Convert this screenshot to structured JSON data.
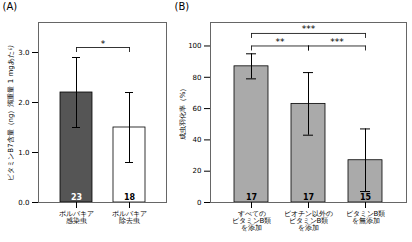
{
  "chart_data": [
    {
      "type": "bar",
      "title": "(A)",
      "categories": [
        "ボルバキア\n感染虫",
        "ボルバキア\n除去虫"
      ],
      "values": [
        2.2,
        1.5
      ],
      "errors": [
        0.7,
        0.7
      ],
      "ns": [
        23,
        18
      ],
      "colors": [
        "#555555",
        "#ffffff"
      ],
      "ylabel": "ビタミンB7含量（ng）濁重量 1 mgあたり",
      "ylim": [
        0,
        3.6
      ],
      "yticks": [
        {
          "value": 0,
          "label": "0.0"
        },
        {
          "value": 1,
          "label": "1.0"
        },
        {
          "value": 2,
          "label": "2.0"
        },
        {
          "value": 3,
          "label": "3.0"
        }
      ],
      "annotations": [
        {
          "from": "ボルバキア\n感染虫",
          "to": "ボルバキア\n除去虫",
          "y": 3.1,
          "text": "*"
        }
      ]
    },
    {
      "type": "bar",
      "title": "(B)",
      "categories": [
        "すべての\nビタミンB類\nを添加",
        "ビオチン以外の\nビタミンB類\nを添加",
        "ビタミンB類\nを無添加"
      ],
      "values": [
        87,
        63,
        27
      ],
      "errors": [
        8,
        20,
        20
      ],
      "ns": [
        17,
        17,
        15
      ],
      "colors": [
        "#aaaaaa",
        "#aaaaaa",
        "#aaaaaa"
      ],
      "ylabel": "成虫羽化率（%）",
      "ylim": [
        0,
        115
      ],
      "yticks": [
        0,
        20,
        40,
        60,
        80,
        100
      ],
      "annotations": [
        {
          "from": "すべての\nビタミンB類\nを添加",
          "to": "ビオチン以外の\nビタミンB類\nを添加",
          "y": 100,
          "text": "**"
        },
        {
          "from": "ビオチン以外の\nビタミンB類\nを添加",
          "to": "ビタミンB類\nを無添加",
          "y": 100,
          "text": "***"
        },
        {
          "from": "すべての\nビタミンB類\nを添加",
          "to": "ビタミンB類\nを無添加",
          "y": 108,
          "text": "***"
        }
      ]
    }
  ]
}
